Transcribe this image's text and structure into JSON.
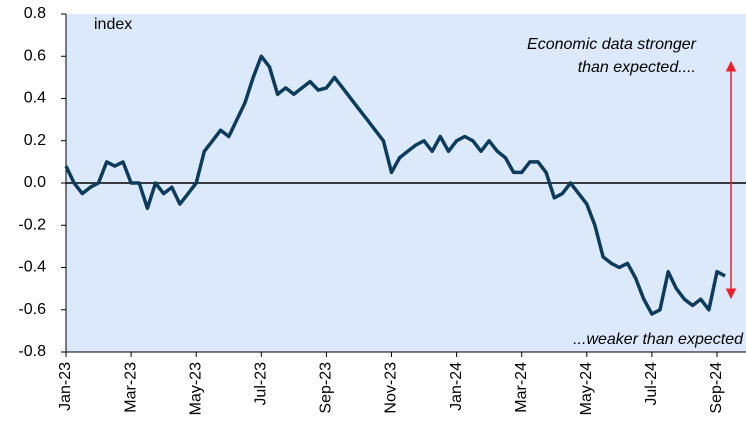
{
  "chart_data": {
    "type": "line",
    "annotations": [
      "index",
      "Economic data stronger",
      "than expected....",
      "...weaker than expected"
    ],
    "categories": [
      "Jan-23",
      null,
      null,
      null,
      null,
      null,
      null,
      null,
      "Mar-23",
      null,
      null,
      null,
      null,
      null,
      null,
      null,
      "May-23",
      null,
      null,
      null,
      null,
      null,
      null,
      null,
      "Jul-23",
      null,
      null,
      null,
      null,
      null,
      null,
      null,
      "Sep-23",
      null,
      null,
      null,
      null,
      null,
      null,
      null,
      "Nov-23",
      null,
      null,
      null,
      null,
      null,
      null,
      null,
      "Jan-24",
      null,
      null,
      null,
      null,
      null,
      null,
      null,
      "Mar-24",
      null,
      null,
      null,
      null,
      null,
      null,
      null,
      "May-24",
      null,
      null,
      null,
      null,
      null,
      null,
      null,
      "Jul-24",
      null,
      null,
      null,
      null,
      null,
      null,
      null,
      "Sep-24",
      null
    ],
    "series": [
      {
        "color": "#0d3b5b",
        "values": [
          0.08,
          0.0,
          -0.05,
          -0.02,
          0.0,
          0.1,
          0.08,
          0.1,
          0.0,
          0.0,
          -0.12,
          0.0,
          -0.05,
          -0.02,
          -0.1,
          -0.05,
          0.0,
          0.15,
          0.2,
          0.25,
          0.22,
          0.3,
          0.38,
          0.5,
          0.6,
          0.55,
          0.42,
          0.45,
          0.42,
          0.45,
          0.48,
          0.44,
          0.45,
          0.5,
          0.45,
          0.4,
          0.35,
          0.3,
          0.25,
          0.2,
          0.05,
          0.12,
          0.15,
          0.18,
          0.2,
          0.15,
          0.22,
          0.15,
          0.2,
          0.22,
          0.2,
          0.15,
          0.2,
          0.15,
          0.12,
          0.05,
          0.05,
          0.1,
          0.1,
          0.05,
          -0.07,
          -0.05,
          0.0,
          -0.05,
          -0.1,
          -0.2,
          -0.35,
          -0.38,
          -0.4,
          -0.38,
          -0.45,
          -0.55,
          -0.62,
          -0.6,
          -0.42,
          -0.5,
          -0.55,
          -0.58,
          -0.55,
          -0.6,
          -0.42,
          -0.44
        ]
      }
    ],
    "ylim": [
      -0.8,
      0.8
    ],
    "yticks": [
      -0.8,
      -0.6,
      -0.4,
      -0.2,
      {
        "value": 0,
        "label": "0.0"
      },
      0.2,
      0.4,
      0.6,
      0.8
    ],
    "background": "#dce9fb",
    "annotation_color": "#e8202a"
  }
}
